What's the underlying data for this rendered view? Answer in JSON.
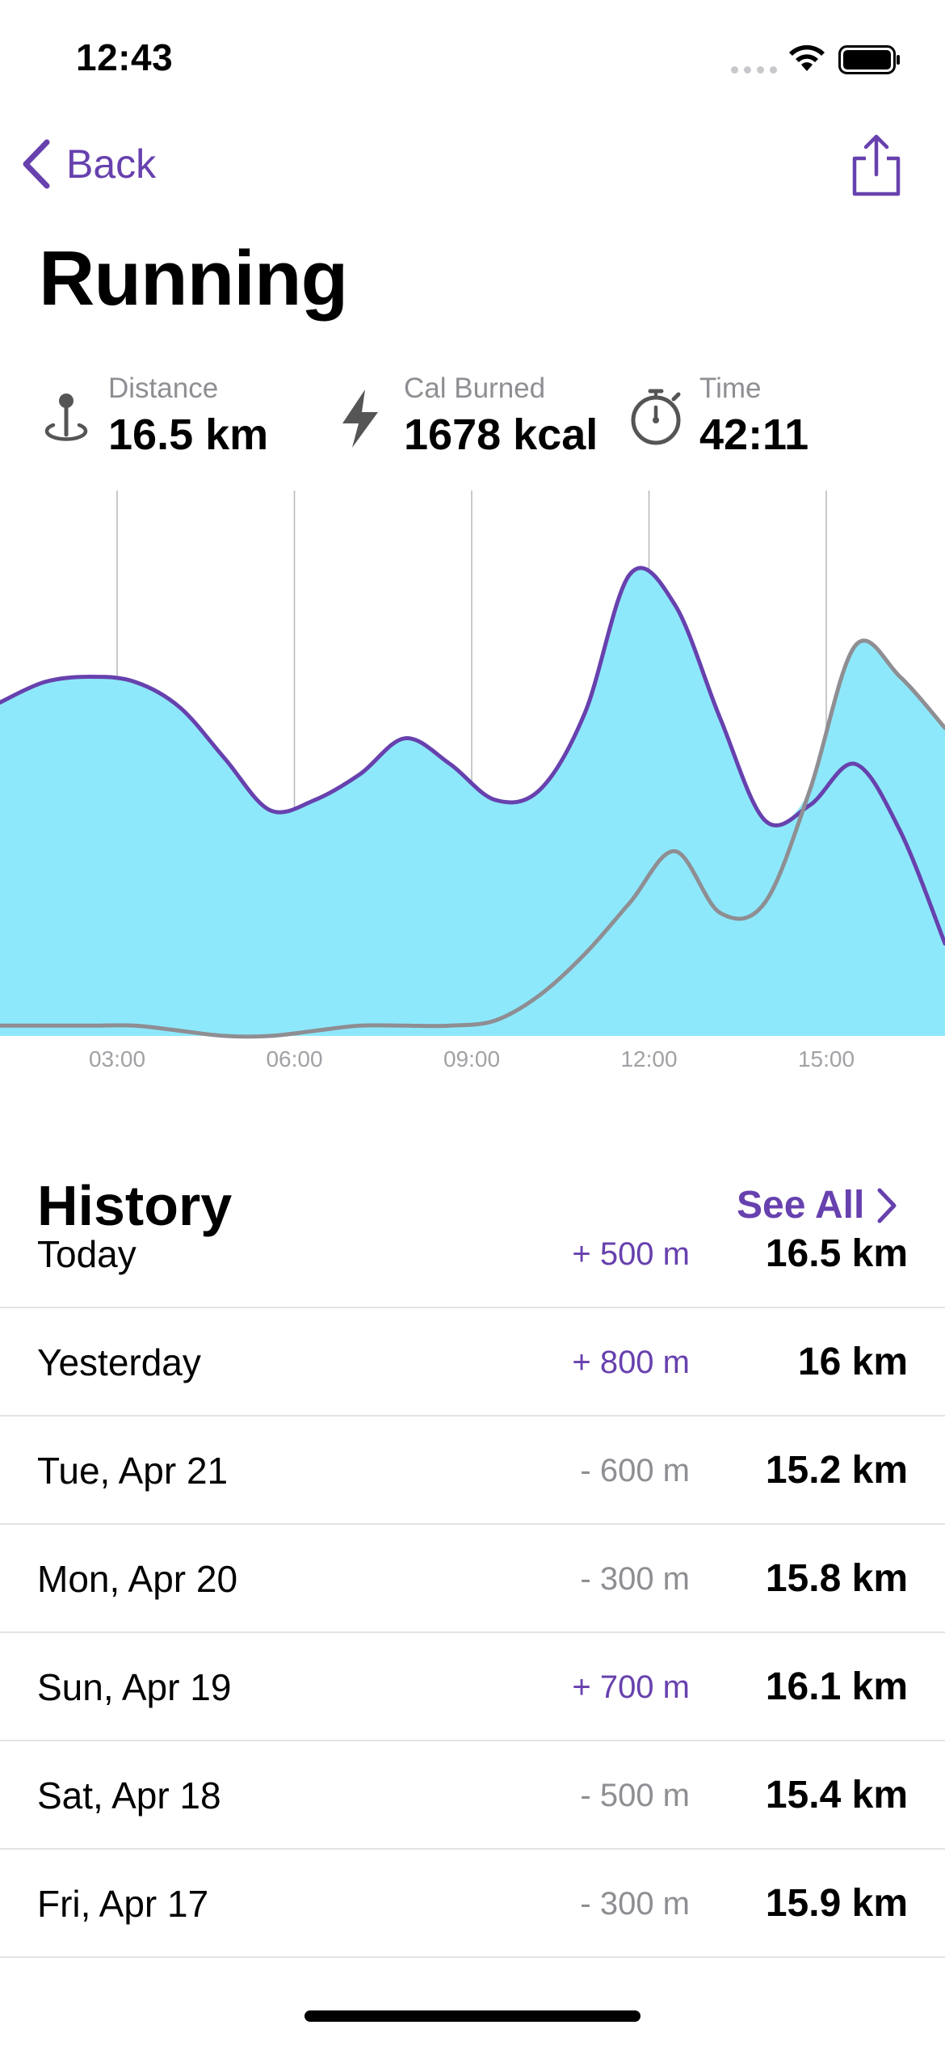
{
  "status_bar": {
    "time": "12:43"
  },
  "nav": {
    "back_label": "Back"
  },
  "page": {
    "title": "Running"
  },
  "stats": [
    {
      "label": "Distance",
      "value": "16.5 km",
      "icon": "location-pin-icon"
    },
    {
      "label": "Cal Burned",
      "value": "1678 kcal",
      "icon": "lightning-bolt-icon"
    },
    {
      "label": "Time",
      "value": "42:11",
      "icon": "stopwatch-icon"
    }
  ],
  "colors": {
    "accent": "#6741ae",
    "fill": "#8ee8fb",
    "secondary_line": "#8e8e93"
  },
  "chart_data": {
    "type": "area",
    "x_ticks": [
      "03:00",
      "06:00",
      "09:00",
      "12:00",
      "15:00"
    ],
    "series": [
      {
        "values": [
          65,
          69,
          70,
          69,
          64,
          54,
          44,
          46,
          51,
          58,
          53,
          46,
          48,
          63,
          90,
          84,
          62,
          42,
          45,
          53,
          40,
          18
        ]
      },
      {
        "values": [
          2,
          2,
          2,
          2,
          1,
          0,
          0,
          1,
          2,
          2,
          2,
          3,
          8,
          16,
          26,
          36,
          24,
          26,
          48,
          76,
          70,
          60
        ]
      }
    ],
    "grid": true
  },
  "history": {
    "title": "History",
    "see_all_label": "See All",
    "rows": [
      {
        "date": "Today",
        "delta": "+ 500 m",
        "trend": "up",
        "distance": "16.5 km"
      },
      {
        "date": "Yesterday",
        "delta": "+ 800 m",
        "trend": "up",
        "distance": "16 km"
      },
      {
        "date": "Tue, Apr 21",
        "delta": "- 600 m",
        "trend": "down",
        "distance": "15.2 km"
      },
      {
        "date": "Mon, Apr 20",
        "delta": "- 300 m",
        "trend": "down",
        "distance": "15.8 km"
      },
      {
        "date": "Sun, Apr 19",
        "delta": "+ 700 m",
        "trend": "up",
        "distance": "16.1 km"
      },
      {
        "date": "Sat, Apr 18",
        "delta": "- 500 m",
        "trend": "down",
        "distance": "15.4 km"
      },
      {
        "date": "Fri, Apr 17",
        "delta": "- 300 m",
        "trend": "down",
        "distance": "15.9 km"
      }
    ]
  }
}
